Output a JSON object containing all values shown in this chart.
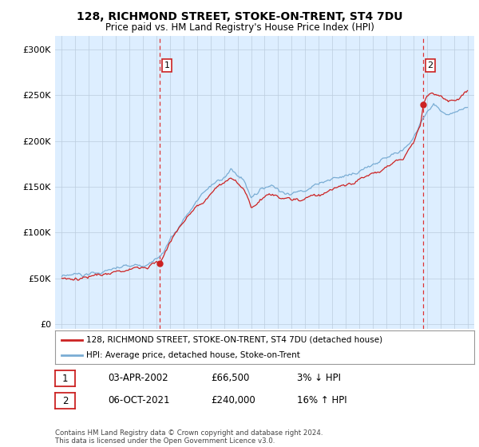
{
  "title": "128, RICHMOND STREET, STOKE-ON-TRENT, ST4 7DU",
  "subtitle": "Price paid vs. HM Land Registry's House Price Index (HPI)",
  "ylabel_ticks": [
    "£0",
    "£50K",
    "£100K",
    "£150K",
    "£200K",
    "£250K",
    "£300K"
  ],
  "ytick_values": [
    0,
    50000,
    100000,
    150000,
    200000,
    250000,
    300000
  ],
  "ylim": [
    -5000,
    315000
  ],
  "xlim": [
    1994.5,
    2025.5
  ],
  "sale1_year": 2002.25,
  "sale1_price": 66500,
  "sale2_year": 2021.75,
  "sale2_price": 240000,
  "legend_line1": "128, RICHMOND STREET, STOKE-ON-TRENT, ST4 7DU (detached house)",
  "legend_line2": "HPI: Average price, detached house, Stoke-on-Trent",
  "table_row1": [
    "1",
    "03-APR-2002",
    "£66,500",
    "3% ↓ HPI"
  ],
  "table_row2": [
    "2",
    "06-OCT-2021",
    "£240,000",
    "16% ↑ HPI"
  ],
  "footer": "Contains HM Land Registry data © Crown copyright and database right 2024.\nThis data is licensed under the Open Government Licence v3.0.",
  "hpi_color": "#7aadd4",
  "price_color": "#cc2222",
  "vline_color": "#dd3333",
  "bg_color": "#ffffff",
  "chart_bg_color": "#ddeeff",
  "grid_color": "#bbccdd",
  "label_box_color": "#cc2222"
}
